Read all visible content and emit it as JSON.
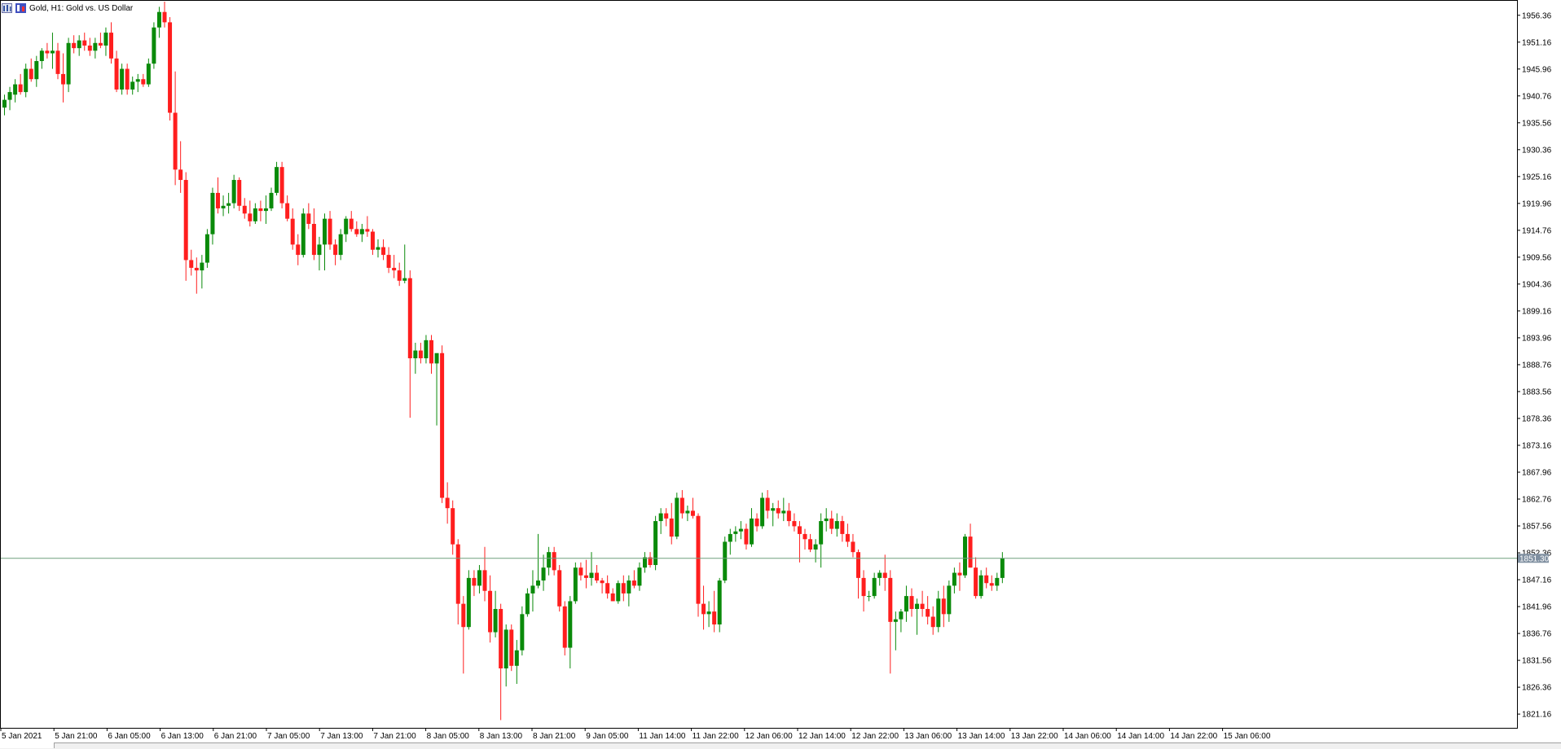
{
  "chart": {
    "symbol_title": "Gold, H1:  Gold vs. US Dollar",
    "symbol": "Gold",
    "timeframe": "H1",
    "description": "Gold vs. US Dollar",
    "current_price": "1851.30",
    "colors": {
      "bull": "#0a8a0a",
      "bear": "#ff1e1e",
      "grid_line": "#6f9f7f",
      "price_tag": "#7f8fa0"
    }
  },
  "chart_data": {
    "type": "candlestick",
    "title": "Gold, H1:  Gold vs. US Dollar",
    "y_ticks": [
      "1956.36",
      "1951.16",
      "1945.96",
      "1940.76",
      "1935.56",
      "1930.36",
      "1925.16",
      "1919.96",
      "1914.76",
      "1909.56",
      "1904.36",
      "1899.16",
      "1893.96",
      "1888.76",
      "1883.56",
      "1878.36",
      "1873.16",
      "1867.96",
      "1862.76",
      "1857.56",
      "1852.36",
      "1847.16",
      "1841.96",
      "1836.76",
      "1831.56",
      "1826.36",
      "1821.16"
    ],
    "x_ticks": [
      "5 Jan 2021",
      "5 Jan 21:00",
      "6 Jan 05:00",
      "6 Jan 13:00",
      "6 Jan 21:00",
      "7 Jan 05:00",
      "7 Jan 13:00",
      "7 Jan 21:00",
      "8 Jan 05:00",
      "8 Jan 13:00",
      "8 Jan 21:00",
      "9 Jan 05:00",
      "11 Jan 14:00",
      "11 Jan 22:00",
      "12 Jan 06:00",
      "12 Jan 14:00",
      "12 Jan 22:00",
      "13 Jan 06:00",
      "13 Jan 14:00",
      "13 Jan 22:00",
      "14 Jan 06:00",
      "14 Jan 14:00",
      "14 Jan 22:00",
      "15 Jan 06:00"
    ],
    "ylim": [
      1818.5,
      1959.0
    ],
    "candles": [
      [
        1938.5,
        1941.0,
        1937.0,
        1940.0
      ],
      [
        1940.0,
        1942.5,
        1938.0,
        1941.5
      ],
      [
        1941.0,
        1944.0,
        1939.5,
        1943.0
      ],
      [
        1943.0,
        1945.0,
        1941.0,
        1941.5
      ],
      [
        1941.5,
        1947.0,
        1940.5,
        1946.0
      ],
      [
        1946.0,
        1948.0,
        1943.5,
        1944.0
      ],
      [
        1944.0,
        1948.5,
        1942.5,
        1947.5
      ],
      [
        1947.5,
        1950.0,
        1946.0,
        1949.5
      ],
      [
        1949.5,
        1951.0,
        1948.0,
        1949.0
      ],
      [
        1949.0,
        1953.0,
        1946.0,
        1949.5
      ],
      [
        1949.5,
        1951.0,
        1944.0,
        1945.0
      ],
      [
        1945.0,
        1949.0,
        1939.5,
        1943.0
      ],
      [
        1943.0,
        1952.0,
        1941.5,
        1951.0
      ],
      [
        1951.0,
        1952.5,
        1949.0,
        1950.0
      ],
      [
        1950.0,
        1952.5,
        1948.5,
        1951.5
      ],
      [
        1951.5,
        1953.0,
        1949.5,
        1950.5
      ],
      [
        1950.5,
        1952.0,
        1948.5,
        1949.5
      ],
      [
        1949.5,
        1952.0,
        1948.0,
        1951.0
      ],
      [
        1951.0,
        1953.0,
        1950.0,
        1950.5
      ],
      [
        1950.5,
        1954.0,
        1948.5,
        1953.0
      ],
      [
        1953.0,
        1955.0,
        1947.0,
        1948.0
      ],
      [
        1948.0,
        1949.5,
        1941.5,
        1942.0
      ],
      [
        1942.0,
        1947.0,
        1941.0,
        1946.0
      ],
      [
        1946.0,
        1947.0,
        1941.0,
        1942.0
      ],
      [
        1942.0,
        1944.5,
        1941.0,
        1943.5
      ],
      [
        1943.5,
        1945.0,
        1941.5,
        1944.0
      ],
      [
        1944.0,
        1945.0,
        1942.5,
        1943.0
      ],
      [
        1943.0,
        1948.0,
        1942.5,
        1947.0
      ],
      [
        1947.0,
        1955.0,
        1946.0,
        1954.0
      ],
      [
        1954.0,
        1958.0,
        1952.0,
        1957.0
      ],
      [
        1957.0,
        1959.0,
        1954.0,
        1955.0
      ],
      [
        1955.0,
        1956.0,
        1936.0,
        1937.5
      ],
      [
        1937.5,
        1945.5,
        1923.5,
        1926.5
      ],
      [
        1926.5,
        1932.0,
        1922.0,
        1924.5
      ],
      [
        1924.5,
        1926.0,
        1905.0,
        1909.0
      ],
      [
        1909.0,
        1911.0,
        1906.0,
        1907.5
      ],
      [
        1907.5,
        1909.5,
        1902.5,
        1907.0
      ],
      [
        1907.0,
        1910.0,
        1903.5,
        1908.5
      ],
      [
        1908.5,
        1915.0,
        1907.5,
        1914.0
      ],
      [
        1914.0,
        1923.0,
        1912.0,
        1922.0
      ],
      [
        1922.0,
        1925.0,
        1918.0,
        1919.0
      ],
      [
        1919.0,
        1921.5,
        1917.5,
        1919.5
      ],
      [
        1919.5,
        1922.0,
        1918.0,
        1920.0
      ],
      [
        1920.0,
        1925.5,
        1919.0,
        1924.5
      ],
      [
        1924.5,
        1925.0,
        1918.5,
        1919.5
      ],
      [
        1919.5,
        1921.0,
        1917.0,
        1918.0
      ],
      [
        1918.0,
        1920.5,
        1915.5,
        1916.5
      ],
      [
        1916.5,
        1920.0,
        1916.0,
        1919.0
      ],
      [
        1919.0,
        1920.5,
        1916.5,
        1918.5
      ],
      [
        1918.5,
        1921.5,
        1916.0,
        1919.0
      ],
      [
        1919.0,
        1923.0,
        1918.5,
        1922.0
      ],
      [
        1922.0,
        1928.0,
        1921.5,
        1927.0
      ],
      [
        1927.0,
        1928.0,
        1919.0,
        1920.0
      ],
      [
        1920.0,
        1921.5,
        1916.5,
        1917.0
      ],
      [
        1917.0,
        1919.0,
        1911.0,
        1912.0
      ],
      [
        1912.0,
        1914.0,
        1908.0,
        1910.0
      ],
      [
        1910.0,
        1919.0,
        1909.5,
        1918.0
      ],
      [
        1918.0,
        1920.0,
        1915.0,
        1916.0
      ],
      [
        1916.0,
        1919.0,
        1909.0,
        1910.0
      ],
      [
        1910.0,
        1913.5,
        1907.0,
        1912.0
      ],
      [
        1912.0,
        1918.0,
        1907.0,
        1917.0
      ],
      [
        1917.0,
        1918.5,
        1911.0,
        1912.0
      ],
      [
        1912.0,
        1913.0,
        1908.0,
        1910.0
      ],
      [
        1910.0,
        1915.0,
        1909.0,
        1914.0
      ],
      [
        1914.0,
        1917.5,
        1912.5,
        1917.0
      ],
      [
        1917.0,
        1918.5,
        1914.5,
        1915.0
      ],
      [
        1915.0,
        1916.5,
        1913.5,
        1914.0
      ],
      [
        1914.0,
        1916.0,
        1912.5,
        1915.0
      ],
      [
        1915.0,
        1917.5,
        1913.5,
        1914.5
      ],
      [
        1914.5,
        1915.0,
        1910.0,
        1911.0
      ],
      [
        1911.0,
        1913.0,
        1909.5,
        1911.5
      ],
      [
        1911.5,
        1913.0,
        1909.0,
        1910.0
      ],
      [
        1910.0,
        1911.5,
        1906.5,
        1907.5
      ],
      [
        1907.5,
        1910.0,
        1905.5,
        1907.0
      ],
      [
        1907.0,
        1908.5,
        1904.0,
        1905.0
      ],
      [
        1905.0,
        1912.0,
        1904.5,
        1905.5
      ],
      [
        1905.5,
        1907.0,
        1878.5,
        1890.0
      ],
      [
        1890.0,
        1893.0,
        1887.0,
        1891.5
      ],
      [
        1891.5,
        1893.0,
        1889.0,
        1890.0
      ],
      [
        1890.0,
        1894.5,
        1889.0,
        1893.5
      ],
      [
        1893.5,
        1894.5,
        1887.0,
        1889.0
      ],
      [
        1889.0,
        1890.5,
        1877.0,
        1891.0
      ],
      [
        1891.0,
        1892.5,
        1862.0,
        1863.0
      ],
      [
        1863.0,
        1866.0,
        1858.0,
        1861.0
      ],
      [
        1861.0,
        1862.5,
        1852.0,
        1854.0
      ],
      [
        1854.0,
        1855.0,
        1838.5,
        1842.5
      ],
      [
        1842.5,
        1844.0,
        1829.0,
        1838.0
      ],
      [
        1838.0,
        1849.0,
        1837.5,
        1847.5
      ],
      [
        1847.5,
        1849.0,
        1844.0,
        1846.0
      ],
      [
        1846.0,
        1850.0,
        1844.5,
        1849.0
      ],
      [
        1849.0,
        1853.5,
        1843.0,
        1845.0
      ],
      [
        1845.0,
        1848.0,
        1835.0,
        1837.0
      ],
      [
        1837.0,
        1845.0,
        1836.0,
        1841.5
      ],
      [
        1841.5,
        1842.5,
        1820.0,
        1830.0
      ],
      [
        1830.0,
        1838.5,
        1826.5,
        1837.5
      ],
      [
        1837.5,
        1838.5,
        1829.5,
        1830.5
      ],
      [
        1830.5,
        1835.5,
        1827.0,
        1833.5
      ],
      [
        1833.5,
        1842.0,
        1832.5,
        1840.5
      ],
      [
        1840.5,
        1845.5,
        1840.0,
        1844.5
      ],
      [
        1844.5,
        1849.0,
        1841.0,
        1846.0
      ],
      [
        1846.0,
        1856.0,
        1845.5,
        1847.0
      ],
      [
        1847.0,
        1852.0,
        1845.0,
        1849.5
      ],
      [
        1849.5,
        1853.5,
        1848.0,
        1852.5
      ],
      [
        1852.5,
        1853.5,
        1848.0,
        1849.0
      ],
      [
        1849.0,
        1850.0,
        1841.0,
        1842.0
      ],
      [
        1842.0,
        1843.0,
        1832.5,
        1834.0
      ],
      [
        1834.0,
        1844.0,
        1830.0,
        1843.0
      ],
      [
        1843.0,
        1850.5,
        1842.5,
        1849.5
      ],
      [
        1849.5,
        1850.5,
        1847.0,
        1848.0
      ],
      [
        1848.0,
        1851.0,
        1845.5,
        1847.5
      ],
      [
        1847.5,
        1852.5,
        1846.0,
        1848.5
      ],
      [
        1848.5,
        1850.0,
        1846.5,
        1847.0
      ],
      [
        1847.0,
        1847.5,
        1844.5,
        1846.5
      ],
      [
        1846.5,
        1848.0,
        1843.5,
        1844.5
      ],
      [
        1844.5,
        1845.5,
        1843.0,
        1843.0
      ],
      [
        1843.0,
        1847.0,
        1842.5,
        1846.5
      ],
      [
        1846.5,
        1848.0,
        1843.0,
        1844.5
      ],
      [
        1844.5,
        1848.0,
        1842.0,
        1847.0
      ],
      [
        1847.0,
        1849.0,
        1845.5,
        1846.0
      ],
      [
        1846.0,
        1850.5,
        1845.0,
        1849.5
      ],
      [
        1849.5,
        1852.5,
        1848.5,
        1851.5
      ],
      [
        1851.5,
        1852.5,
        1849.5,
        1850.0
      ],
      [
        1850.0,
        1859.5,
        1849.0,
        1858.5
      ],
      [
        1858.5,
        1861.0,
        1856.0,
        1860.0
      ],
      [
        1860.0,
        1861.0,
        1857.5,
        1859.0
      ],
      [
        1859.0,
        1862.0,
        1854.0,
        1855.5
      ],
      [
        1855.5,
        1864.0,
        1855.0,
        1863.0
      ],
      [
        1863.0,
        1864.5,
        1859.0,
        1860.0
      ],
      [
        1860.0,
        1861.5,
        1858.5,
        1860.5
      ],
      [
        1860.5,
        1863.0,
        1859.0,
        1859.5
      ],
      [
        1859.5,
        1860.0,
        1840.0,
        1842.5
      ],
      [
        1842.5,
        1846.0,
        1837.5,
        1840.5
      ],
      [
        1840.5,
        1843.0,
        1838.0,
        1841.0
      ],
      [
        1841.0,
        1845.0,
        1837.0,
        1838.5
      ],
      [
        1838.5,
        1847.5,
        1837.0,
        1847.0
      ],
      [
        1847.0,
        1855.5,
        1846.5,
        1854.5
      ],
      [
        1854.5,
        1857.0,
        1852.0,
        1856.0
      ],
      [
        1856.0,
        1857.5,
        1854.5,
        1856.5
      ],
      [
        1856.5,
        1858.5,
        1855.0,
        1857.0
      ],
      [
        1857.0,
        1858.0,
        1853.0,
        1854.0
      ],
      [
        1854.0,
        1861.0,
        1853.5,
        1859.0
      ],
      [
        1859.0,
        1860.0,
        1856.5,
        1857.5
      ],
      [
        1857.5,
        1864.0,
        1857.0,
        1863.0
      ],
      [
        1863.0,
        1864.5,
        1859.0,
        1860.5
      ],
      [
        1860.5,
        1862.0,
        1857.5,
        1861.0
      ],
      [
        1861.0,
        1862.5,
        1859.0,
        1860.0
      ],
      [
        1860.0,
        1863.0,
        1858.5,
        1860.5
      ],
      [
        1860.5,
        1862.0,
        1857.5,
        1858.5
      ],
      [
        1858.5,
        1860.0,
        1856.5,
        1857.5
      ],
      [
        1857.5,
        1858.5,
        1850.5,
        1856.0
      ],
      [
        1856.0,
        1857.0,
        1853.0,
        1855.0
      ],
      [
        1855.0,
        1856.0,
        1852.5,
        1853.0
      ],
      [
        1853.0,
        1855.0,
        1850.5,
        1854.0
      ],
      [
        1854.0,
        1860.0,
        1849.5,
        1858.5
      ],
      [
        1858.5,
        1861.0,
        1856.5,
        1859.0
      ],
      [
        1859.0,
        1860.5,
        1856.0,
        1857.0
      ],
      [
        1857.0,
        1860.0,
        1855.5,
        1858.5
      ],
      [
        1858.5,
        1859.5,
        1854.5,
        1856.0
      ],
      [
        1856.0,
        1858.0,
        1853.5,
        1854.5
      ],
      [
        1854.5,
        1856.0,
        1851.5,
        1852.5
      ],
      [
        1852.5,
        1853.0,
        1843.5,
        1847.5
      ],
      [
        1847.5,
        1849.0,
        1841.0,
        1844.0
      ],
      [
        1844.0,
        1845.0,
        1843.0,
        1844.0
      ],
      [
        1844.0,
        1848.5,
        1843.5,
        1847.5
      ],
      [
        1847.5,
        1849.0,
        1846.0,
        1848.5
      ],
      [
        1848.5,
        1852.0,
        1845.0,
        1847.5
      ],
      [
        1847.5,
        1849.0,
        1829.0,
        1839.0
      ],
      [
        1839.0,
        1841.0,
        1833.5,
        1839.5
      ],
      [
        1839.5,
        1841.5,
        1837.0,
        1841.0
      ],
      [
        1841.0,
        1846.0,
        1839.0,
        1844.0
      ],
      [
        1844.0,
        1845.5,
        1840.0,
        1841.5
      ],
      [
        1841.5,
        1843.5,
        1836.5,
        1842.5
      ],
      [
        1842.5,
        1845.0,
        1840.0,
        1841.5
      ],
      [
        1841.5,
        1844.0,
        1838.5,
        1840.0
      ],
      [
        1840.0,
        1842.0,
        1836.5,
        1838.0
      ],
      [
        1838.0,
        1845.0,
        1837.0,
        1843.5
      ],
      [
        1843.5,
        1846.0,
        1838.0,
        1840.5
      ],
      [
        1840.5,
        1847.0,
        1839.0,
        1846.0
      ],
      [
        1846.0,
        1849.5,
        1844.5,
        1848.5
      ],
      [
        1848.5,
        1850.5,
        1845.0,
        1848.0
      ],
      [
        1848.0,
        1856.0,
        1847.5,
        1855.5
      ],
      [
        1855.5,
        1858.0,
        1849.5,
        1849.5
      ],
      [
        1849.5,
        1851.5,
        1843.5,
        1844.0
      ],
      [
        1844.0,
        1849.0,
        1843.5,
        1848.0
      ],
      [
        1848.0,
        1849.5,
        1845.5,
        1846.5
      ],
      [
        1846.5,
        1848.0,
        1845.0,
        1846.0
      ],
      [
        1846.0,
        1848.5,
        1845.0,
        1847.5
      ],
      [
        1847.5,
        1852.5,
        1846.5,
        1851.3
      ]
    ]
  }
}
